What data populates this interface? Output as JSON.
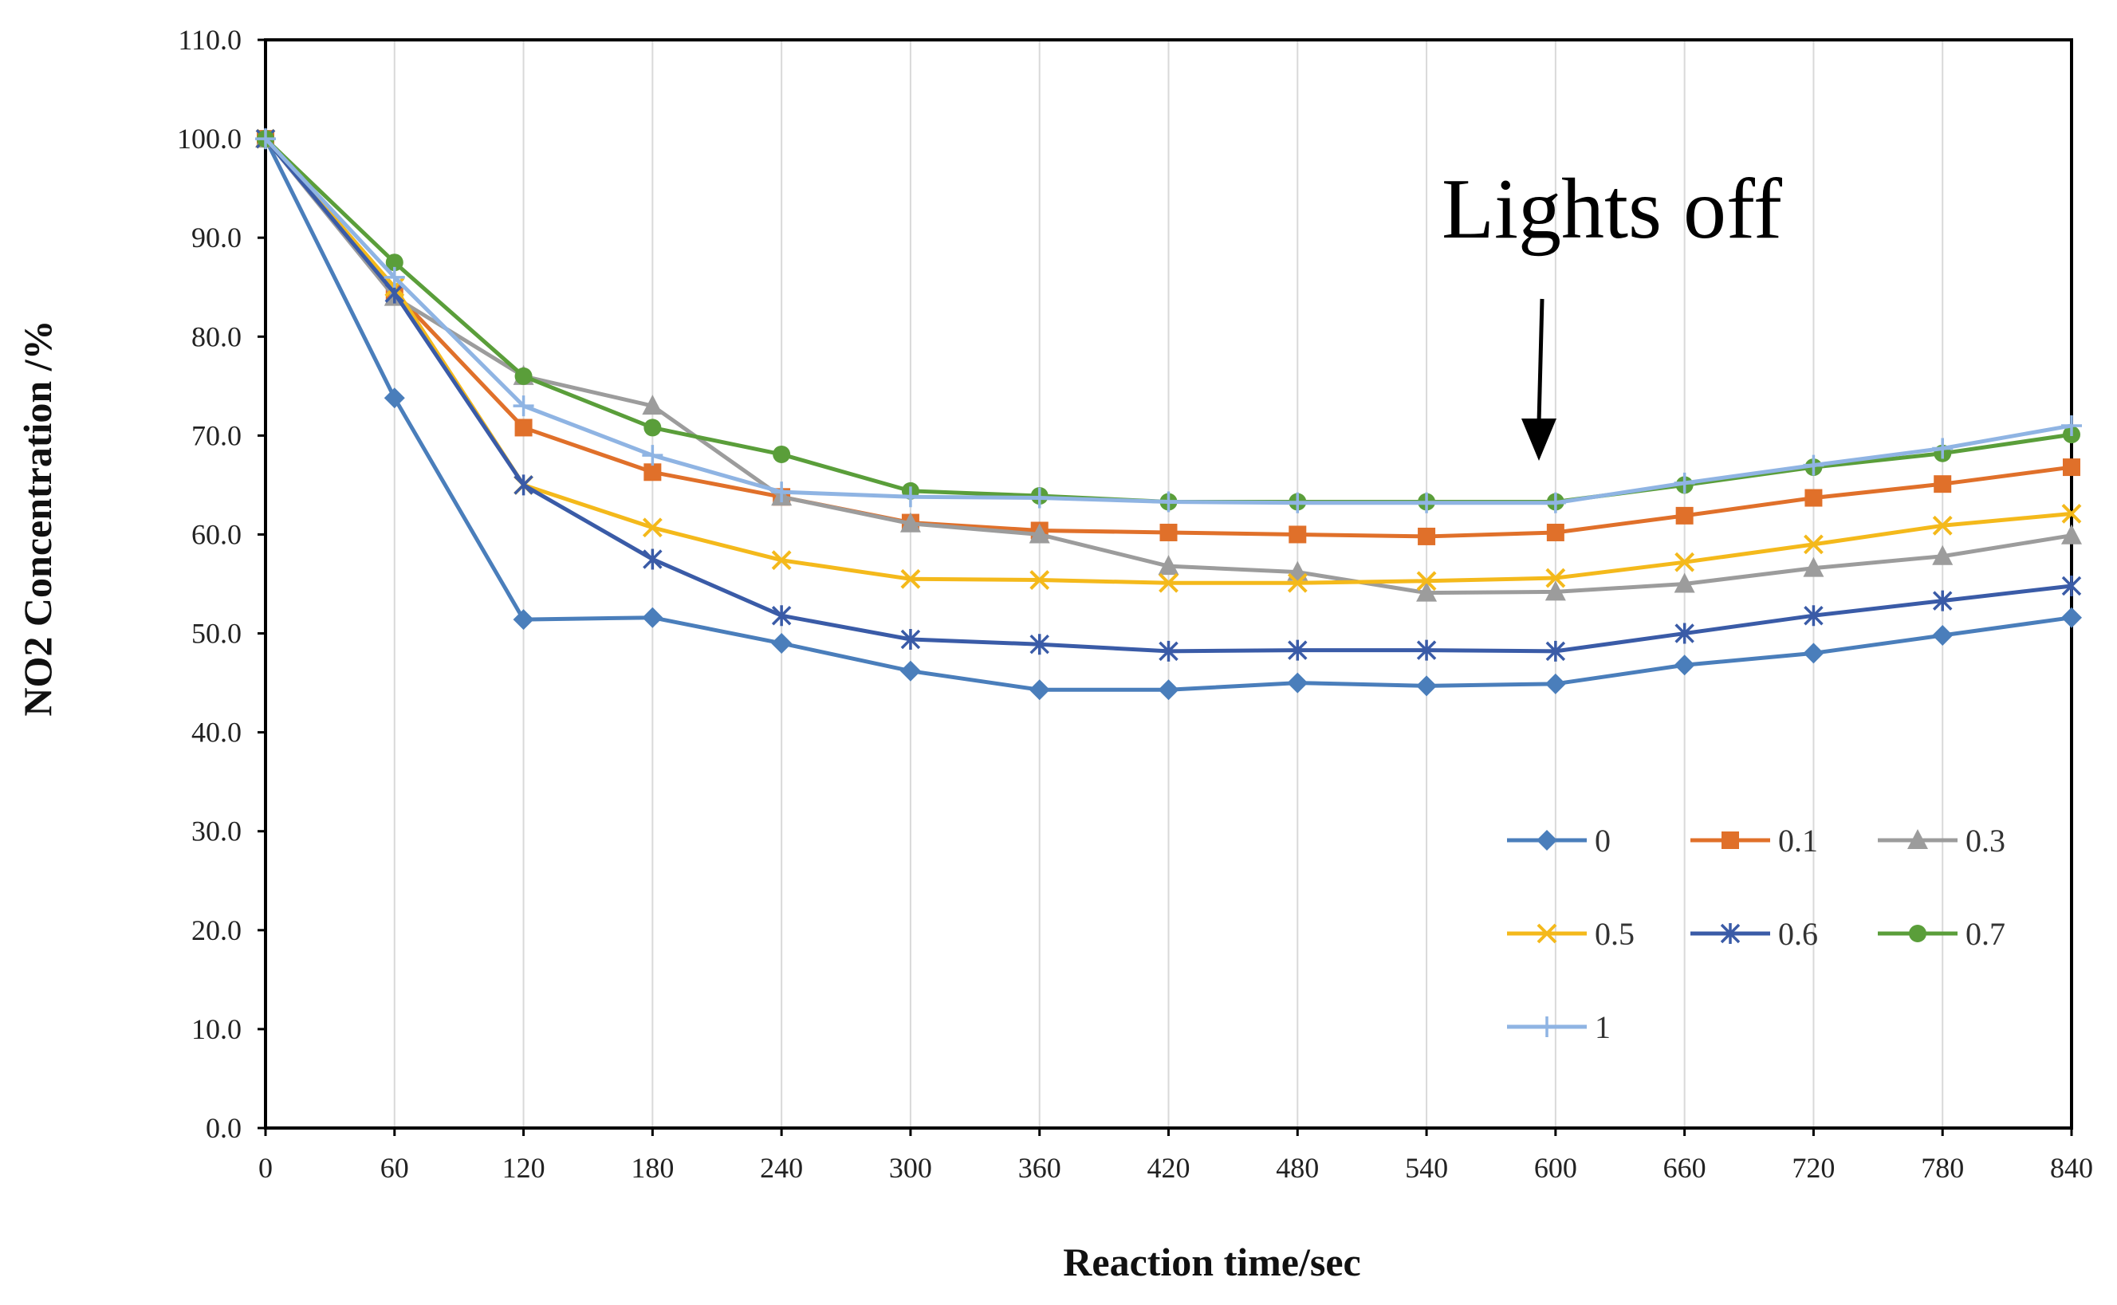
{
  "chart_data": {
    "type": "line",
    "title": "",
    "xlabel": "Reaction time/sec",
    "ylabel": "NO2 Concentration /%",
    "x": [
      0,
      60,
      120,
      180,
      240,
      300,
      360,
      420,
      480,
      540,
      600,
      660,
      720,
      780,
      840
    ],
    "x_tick_labels": [
      "0",
      "60",
      "120",
      "180",
      "240",
      "300",
      "360",
      "420",
      "480",
      "540",
      "600",
      "660",
      "720",
      "780",
      "840"
    ],
    "xlim": [
      0,
      840
    ],
    "ylim": [
      0,
      110
    ],
    "y_ticks": [
      0,
      10,
      20,
      30,
      40,
      50,
      60,
      70,
      80,
      90,
      100,
      110
    ],
    "y_tick_labels": [
      "0.0",
      "10.0",
      "20.0",
      "30.0",
      "40.0",
      "50.0",
      "60.0",
      "70.0",
      "80.0",
      "90.0",
      "100.0",
      "110.0"
    ],
    "grid": "vertical",
    "legend_position": "bottom-right",
    "annotation": {
      "text": "Lights off",
      "points_to_x": 590,
      "points_to_y": 67
    },
    "series": [
      {
        "name": "0",
        "color": "#4a7ebb",
        "marker": "diamond",
        "values": [
          100.0,
          73.8,
          51.4,
          51.6,
          49.0,
          46.2,
          44.3,
          44.3,
          45.0,
          44.7,
          44.9,
          46.8,
          48.0,
          49.8,
          51.6
        ]
      },
      {
        "name": "0.1",
        "color": "#e0702a",
        "marker": "square",
        "values": [
          100.0,
          84.5,
          70.8,
          66.3,
          63.8,
          61.2,
          60.4,
          60.2,
          60.0,
          59.8,
          60.2,
          61.9,
          63.7,
          65.1,
          66.8
        ]
      },
      {
        "name": "0.3",
        "color": "#9c9c9c",
        "marker": "triangle",
        "values": [
          100.0,
          84.0,
          76.0,
          73.0,
          63.8,
          61.1,
          60.0,
          56.8,
          56.2,
          54.1,
          54.2,
          55.0,
          56.6,
          57.8,
          59.9
        ]
      },
      {
        "name": "0.5",
        "color": "#f4b91b",
        "marker": "x",
        "values": [
          100.0,
          85.0,
          65.0,
          60.7,
          57.4,
          55.5,
          55.4,
          55.1,
          55.1,
          55.3,
          55.6,
          57.2,
          59.0,
          60.9,
          62.1
        ]
      },
      {
        "name": "0.6",
        "color": "#3a5ba7",
        "marker": "star",
        "values": [
          100.0,
          84.4,
          65.0,
          57.5,
          51.8,
          49.4,
          48.9,
          48.2,
          48.3,
          48.3,
          48.2,
          50.0,
          51.8,
          53.3,
          54.8
        ]
      },
      {
        "name": "0.7",
        "color": "#5a9e3a",
        "marker": "circle",
        "values": [
          100.0,
          87.5,
          76.0,
          70.8,
          68.1,
          64.4,
          63.9,
          63.3,
          63.3,
          63.3,
          63.3,
          65.0,
          66.8,
          68.2,
          70.1
        ]
      },
      {
        "name": "1",
        "color": "#8fb4e3",
        "marker": "plus",
        "values": [
          100.0,
          86.0,
          73.0,
          68.0,
          64.3,
          63.8,
          63.7,
          63.3,
          63.2,
          63.2,
          63.2,
          65.2,
          67.0,
          68.7,
          71.0
        ]
      }
    ]
  }
}
